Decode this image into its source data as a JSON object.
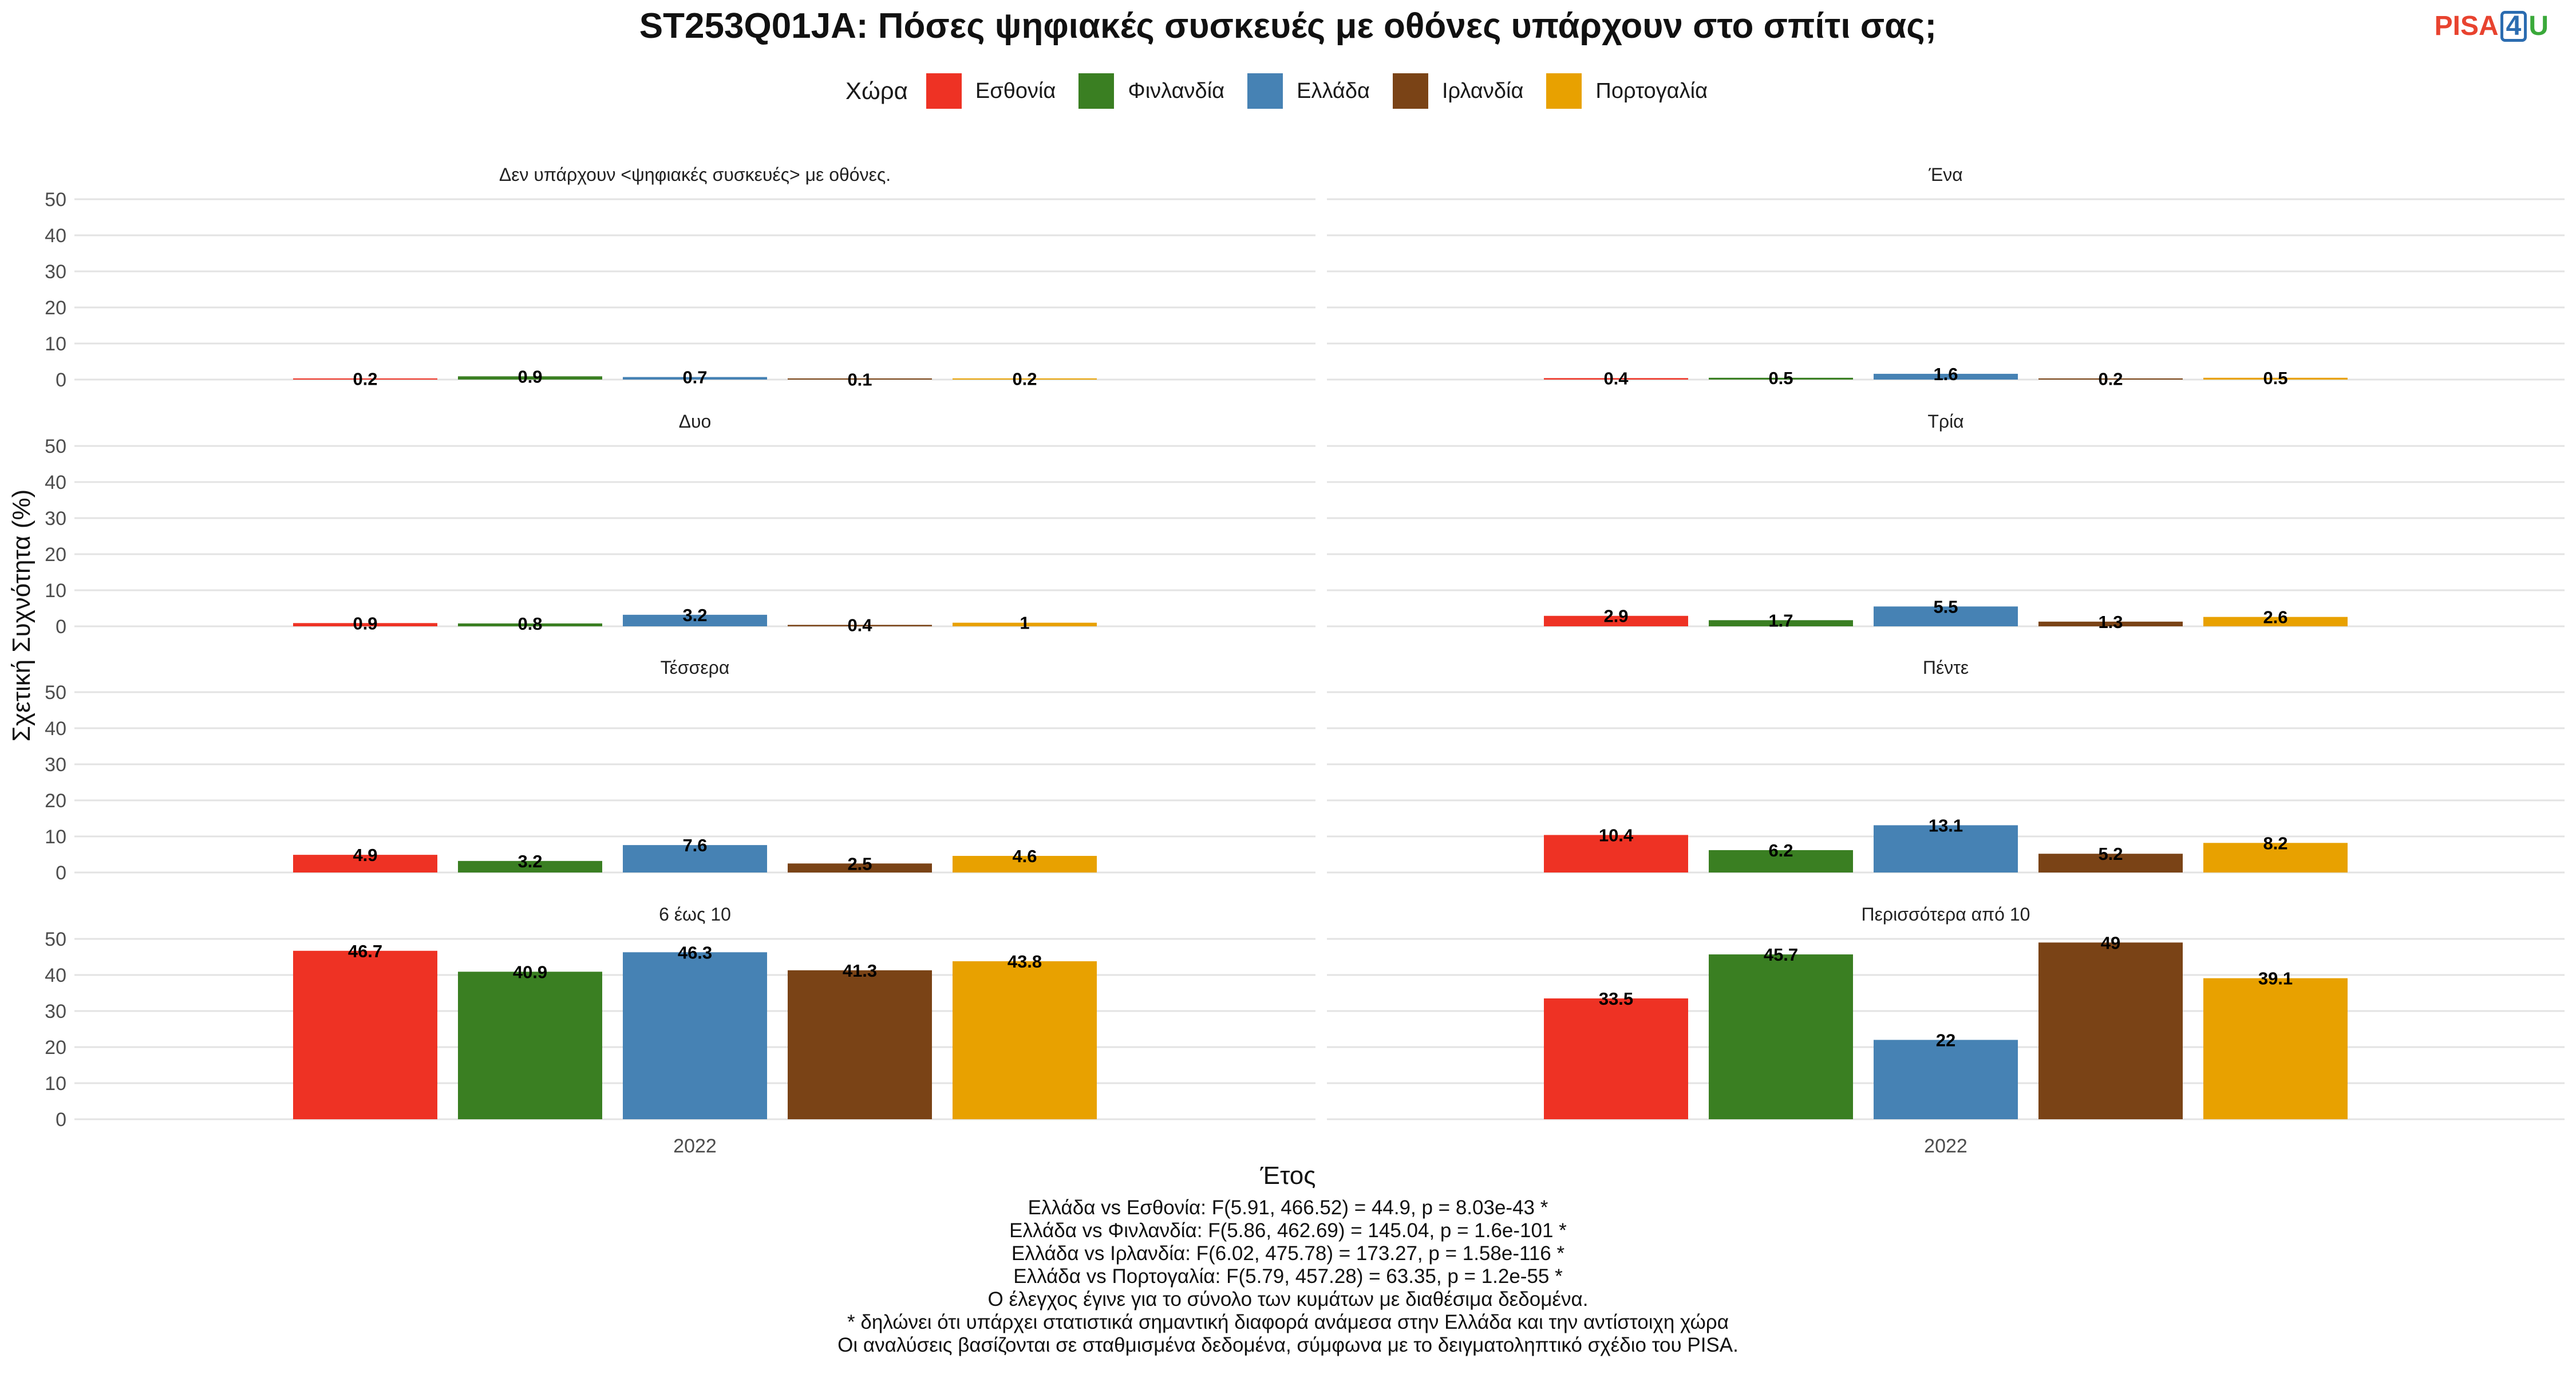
{
  "title": "ST253Q01JA: Πόσες ψηφιακές συσκευές με οθόνες υπάρχουν στο σπίτι σας;",
  "logo": {
    "part1": "PISA",
    "part2": "4",
    "part3": "U"
  },
  "legend": {
    "title": "Χώρα",
    "items": [
      {
        "label": "Εσθονία",
        "color": "#EE3224"
      },
      {
        "label": "Φινλανδία",
        "color": "#3A7F22"
      },
      {
        "label": "Ελλάδα",
        "color": "#4682B4"
      },
      {
        "label": "Ιρλανδία",
        "color": "#7A4316"
      },
      {
        "label": "Πορτογαλία",
        "color": "#E8A100"
      }
    ]
  },
  "footer": {
    "lines": [
      "Ελλάδα vs Εσθονία: F(5.91, 466.52) = 44.9, p = 8.03e-43 *",
      "Ελλάδα vs Φινλανδία: F(5.86, 462.69) = 145.04, p = 1.6e-101 *",
      "Ελλάδα vs Ιρλανδία: F(6.02, 475.78) = 173.27, p = 1.58e-116 *",
      "Ελλάδα vs Πορτογαλία: F(5.79, 457.28) = 63.35, p = 1.2e-55 *",
      "Ο έλεγχος έγινε για το σύνολο των κυμάτων με διαθέσιμα δεδομένα.",
      "* δηλώνει ότι υπάρχει στατιστικά σημαντική διαφορά ανάμεσα στην Ελλάδα και την αντίστοιχη χώρα",
      "Οι αναλύσεις βασίζονται σε σταθμισμένα δεδομένα, σύμφωνα με το δειγματοληπτικό σχέδιο του PISA."
    ]
  },
  "chart_data": {
    "type": "bar",
    "xlabel": "Έτος",
    "ylabel": "Σχετική Συχνότητα (%)",
    "ylim": [
      0,
      50
    ],
    "yticks": [
      0,
      10,
      20,
      30,
      40,
      50
    ],
    "grid": true,
    "legend_position": "top",
    "x_category": "2022",
    "countries": [
      "Εσθονία",
      "Φινλανδία",
      "Ελλάδα",
      "Ιρλανδία",
      "Πορτογαλία"
    ],
    "colors": [
      "#EE3224",
      "#3A7F22",
      "#4682B4",
      "#7A4316",
      "#E8A100"
    ],
    "panels": [
      {
        "label": "Δεν υπάρχουν <ψηφιακές συσκευές> με οθόνες.",
        "values": [
          0.2,
          0.9,
          0.7,
          0.1,
          0.2
        ]
      },
      {
        "label": "Ένα",
        "values": [
          0.4,
          0.5,
          1.6,
          0.2,
          0.5
        ]
      },
      {
        "label": "Δυο",
        "values": [
          0.9,
          0.8,
          3.2,
          0.4,
          1
        ]
      },
      {
        "label": "Τρία",
        "values": [
          2.9,
          1.7,
          5.5,
          1.3,
          2.6
        ]
      },
      {
        "label": "Τέσσερα",
        "values": [
          4.9,
          3.2,
          7.6,
          2.5,
          4.6
        ]
      },
      {
        "label": "Πέντε",
        "values": [
          10.4,
          6.2,
          13.1,
          5.2,
          8.2
        ]
      },
      {
        "label": "6 έως 10",
        "values": [
          46.7,
          40.9,
          46.3,
          41.3,
          43.8
        ]
      },
      {
        "label": "Περισσότερα από 10",
        "values": [
          33.5,
          45.7,
          22,
          49,
          39.1
        ]
      }
    ]
  }
}
